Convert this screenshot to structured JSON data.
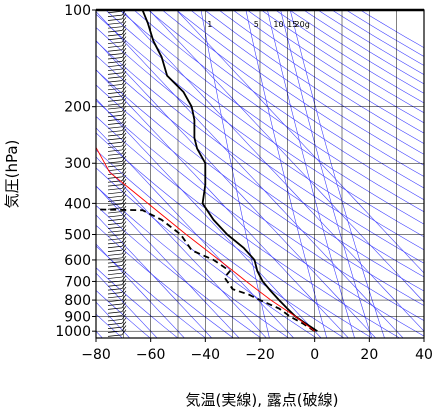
{
  "chart_data": {
    "type": "line",
    "title": "",
    "xlabel": "気温(実線), 露点(破線)",
    "ylabel": "気圧(hPa)",
    "xlim": [
      -80,
      40
    ],
    "ylim": [
      1050,
      100
    ],
    "yscale": "log",
    "grid": true,
    "x_ticks": [
      -80,
      -60,
      -40,
      -20,
      0,
      20,
      40
    ],
    "x_tick_labels": [
      "−80",
      "−60",
      "−40",
      "−20",
      "0",
      "20",
      "40"
    ],
    "y_ticks": [
      100,
      200,
      300,
      400,
      500,
      600,
      700,
      800,
      900,
      1000
    ],
    "y_tick_labels": [
      "100",
      "200",
      "300",
      "400",
      "500",
      "600",
      "700",
      "800",
      "900",
      "1000"
    ],
    "mixing_ratio_labels": [
      {
        "text": "1",
        "value": 1
      },
      {
        "text": "5",
        "value": 5
      },
      {
        "text": "10",
        "value": 10
      },
      {
        "text": "15",
        "value": 15
      },
      {
        "text": "20g",
        "value": 20
      }
    ],
    "series": [
      {
        "style": "solid",
        "color": "#000000",
        "points": [
          {
            "p": 1000,
            "t": 1
          },
          {
            "p": 950,
            "t": -3
          },
          {
            "p": 900,
            "t": -7
          },
          {
            "p": 850,
            "t": -10
          },
          {
            "p": 800,
            "t": -13
          },
          {
            "p": 750,
            "t": -16
          },
          {
            "p": 700,
            "t": -19
          },
          {
            "p": 650,
            "t": -21
          },
          {
            "p": 600,
            "t": -22
          },
          {
            "p": 550,
            "t": -26
          },
          {
            "p": 500,
            "t": -32
          },
          {
            "p": 450,
            "t": -37
          },
          {
            "p": 400,
            "t": -41
          },
          {
            "p": 350,
            "t": -40
          },
          {
            "p": 300,
            "t": -40
          },
          {
            "p": 270,
            "t": -43
          },
          {
            "p": 250,
            "t": -44
          },
          {
            "p": 220,
            "t": -44
          },
          {
            "p": 200,
            "t": -45
          },
          {
            "p": 180,
            "t": -48
          },
          {
            "p": 160,
            "t": -54
          },
          {
            "p": 140,
            "t": -56
          },
          {
            "p": 125,
            "t": -59
          },
          {
            "p": 110,
            "t": -61
          },
          {
            "p": 100,
            "t": -63
          }
        ]
      },
      {
        "style": "dashed",
        "color": "#000000",
        "points": [
          {
            "p": 1000,
            "t": 0
          },
          {
            "p": 950,
            "t": -4
          },
          {
            "p": 900,
            "t": -9
          },
          {
            "p": 850,
            "t": -13
          },
          {
            "p": 800,
            "t": -20
          },
          {
            "p": 770,
            "t": -24
          },
          {
            "p": 740,
            "t": -30
          },
          {
            "p": 700,
            "t": -32
          },
          {
            "p": 680,
            "t": -33
          },
          {
            "p": 650,
            "t": -31
          },
          {
            "p": 600,
            "t": -37
          },
          {
            "p": 560,
            "t": -45
          },
          {
            "p": 500,
            "t": -49
          },
          {
            "p": 450,
            "t": -56
          },
          {
            "p": 420,
            "t": -63
          },
          {
            "p": 418,
            "t": -79
          }
        ]
      },
      {
        "style": "solid",
        "color": "#ff0000",
        "points": [
          {
            "p": 1000,
            "t": 0
          },
          {
            "p": 900,
            "t": -7
          },
          {
            "p": 800,
            "t": -16
          },
          {
            "p": 700,
            "t": -25
          },
          {
            "p": 600,
            "t": -35
          },
          {
            "p": 500,
            "t": -47
          },
          {
            "p": 400,
            "t": -61
          },
          {
            "p": 320,
            "t": -75
          },
          {
            "p": 268,
            "t": -80
          }
        ]
      }
    ],
    "colors": {
      "dry_adiabat": "#4040ff",
      "isotherm": "#4040ff",
      "grid": "#000000",
      "parcel": "#ff0000"
    }
  }
}
